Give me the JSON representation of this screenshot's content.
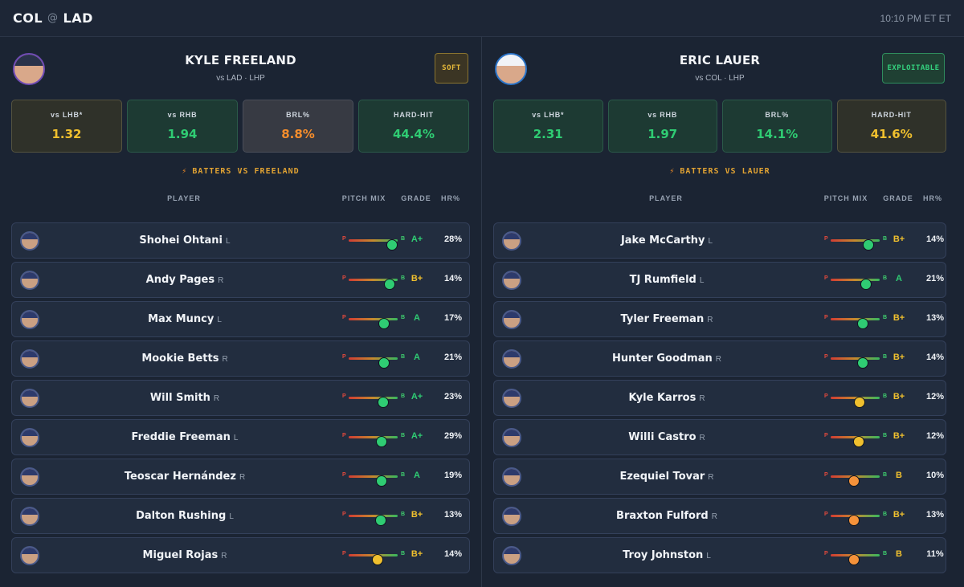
{
  "header": {
    "away": "COL",
    "at": "@",
    "home": "LAD",
    "time": "10:10 PM ET ET"
  },
  "colors": {
    "green": "#2fcc73",
    "yellow": "#f0c02e",
    "orange": "#f5923a",
    "red": "#e24a3d"
  },
  "panels": [
    {
      "pitcher": {
        "name": "KYLE FREELAND",
        "sub": "vs LAD · LHP",
        "verdict": "SOFT",
        "verdict_style": "soft"
      },
      "stats": [
        {
          "label": "vs LHB*",
          "value": "1.32",
          "tone": "yellow"
        },
        {
          "label": "vs RHB",
          "value": "1.94",
          "tone": "green"
        },
        {
          "label": "BRL%",
          "value": "8.8%",
          "tone": "gray"
        },
        {
          "label": "HARD-HIT",
          "value": "44.4%",
          "tone": "green"
        }
      ],
      "section_title": "BATTERS VS FREELAND",
      "columns": {
        "player": "PLAYER",
        "pitch_mix": "PITCH MIX",
        "grade": "GRADE",
        "hr": "HR%"
      },
      "mix_labels": {
        "p": "P",
        "b": "B"
      },
      "batters": [
        {
          "name": "Shohei Ohtani",
          "hand": "L",
          "mix": 0.88,
          "dot": "green",
          "grade": "A+",
          "grade_color": "green",
          "hr": "28%"
        },
        {
          "name": "Andy Pages",
          "hand": "R",
          "mix": 0.83,
          "dot": "green",
          "grade": "B+",
          "grade_color": "yellow",
          "hr": "14%"
        },
        {
          "name": "Max Muncy",
          "hand": "L",
          "mix": 0.72,
          "dot": "green",
          "grade": "A",
          "grade_color": "green",
          "hr": "17%"
        },
        {
          "name": "Mookie Betts",
          "hand": "R",
          "mix": 0.72,
          "dot": "green",
          "grade": "A",
          "grade_color": "green",
          "hr": "21%"
        },
        {
          "name": "Will Smith",
          "hand": "R",
          "mix": 0.7,
          "dot": "green",
          "grade": "A+",
          "grade_color": "green",
          "hr": "23%"
        },
        {
          "name": "Freddie Freeman",
          "hand": "L",
          "mix": 0.68,
          "dot": "green",
          "grade": "A+",
          "grade_color": "green",
          "hr": "29%"
        },
        {
          "name": "Teoscar Hernández",
          "hand": "R",
          "mix": 0.68,
          "dot": "green",
          "grade": "A",
          "grade_color": "green",
          "hr": "19%"
        },
        {
          "name": "Dalton Rushing",
          "hand": "L",
          "mix": 0.66,
          "dot": "green",
          "grade": "B+",
          "grade_color": "yellow",
          "hr": "13%"
        },
        {
          "name": "Miguel Rojas",
          "hand": "R",
          "mix": 0.59,
          "dot": "yellow",
          "grade": "B+",
          "grade_color": "yellow",
          "hr": "14%"
        }
      ]
    },
    {
      "pitcher": {
        "name": "ERIC LAUER",
        "sub": "vs COL · LHP",
        "verdict": "EXPLOITABLE",
        "verdict_style": "exp"
      },
      "stats": [
        {
          "label": "vs LHB*",
          "value": "2.31",
          "tone": "green"
        },
        {
          "label": "vs RHB",
          "value": "1.97",
          "tone": "green"
        },
        {
          "label": "BRL%",
          "value": "14.1%",
          "tone": "green"
        },
        {
          "label": "HARD-HIT",
          "value": "41.6%",
          "tone": "yellow"
        }
      ],
      "section_title": "BATTERS VS LAUER",
      "columns": {
        "player": "PLAYER",
        "pitch_mix": "PITCH MIX",
        "grade": "GRADE",
        "hr": "HR%"
      },
      "mix_labels": {
        "p": "P",
        "b": "B"
      },
      "batters": [
        {
          "name": "Jake McCarthy",
          "hand": "L",
          "mix": 0.77,
          "dot": "green",
          "grade": "B+",
          "grade_color": "yellow",
          "hr": "14%"
        },
        {
          "name": "TJ Rumfield",
          "hand": "L",
          "mix": 0.72,
          "dot": "green",
          "grade": "A",
          "grade_color": "green",
          "hr": "21%"
        },
        {
          "name": "Tyler Freeman",
          "hand": "R",
          "mix": 0.66,
          "dot": "green",
          "grade": "B+",
          "grade_color": "yellow",
          "hr": "13%"
        },
        {
          "name": "Hunter Goodman",
          "hand": "R",
          "mix": 0.66,
          "dot": "green",
          "grade": "B+",
          "grade_color": "yellow",
          "hr": "14%"
        },
        {
          "name": "Kyle Karros",
          "hand": "R",
          "mix": 0.59,
          "dot": "yellow",
          "grade": "B+",
          "grade_color": "yellow",
          "hr": "12%"
        },
        {
          "name": "Willi Castro",
          "hand": "R",
          "mix": 0.58,
          "dot": "yellow",
          "grade": "B+",
          "grade_color": "yellow",
          "hr": "12%"
        },
        {
          "name": "Ezequiel Tovar",
          "hand": "R",
          "mix": 0.47,
          "dot": "orange",
          "grade": "B",
          "grade_color": "yellow",
          "hr": "10%"
        },
        {
          "name": "Braxton Fulford",
          "hand": "R",
          "mix": 0.47,
          "dot": "orange",
          "grade": "B+",
          "grade_color": "yellow",
          "hr": "13%"
        },
        {
          "name": "Troy Johnston",
          "hand": "L",
          "mix": 0.47,
          "dot": "orange",
          "grade": "B",
          "grade_color": "yellow",
          "hr": "11%"
        }
      ]
    }
  ]
}
